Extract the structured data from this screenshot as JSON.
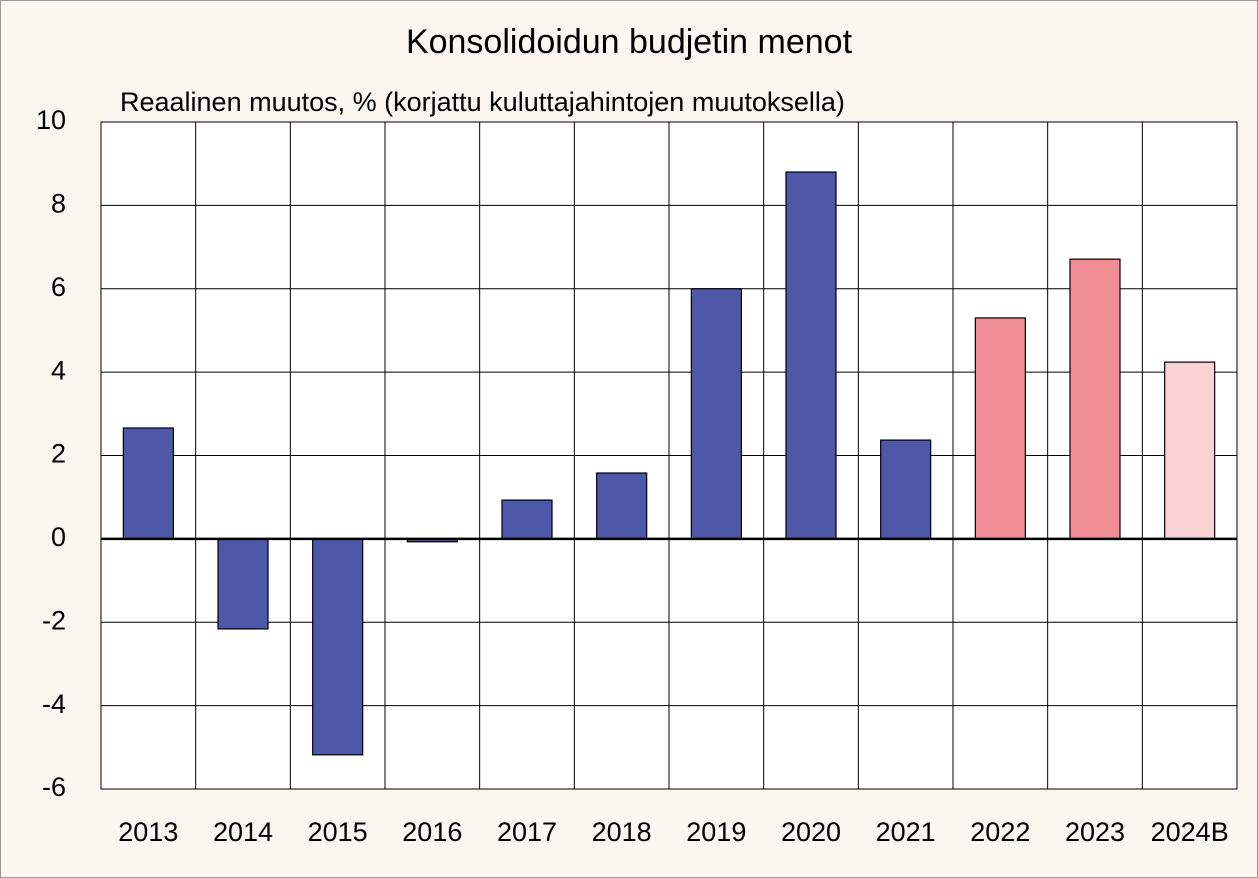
{
  "chart_data": {
    "type": "bar",
    "title": "Konsolidoidun budjetin menot",
    "subtitle": "Reaalinen muutos, % (korjattu kuluttajahintojen muutoksella)",
    "categories": [
      "2013",
      "2014",
      "2015",
      "2016",
      "2017",
      "2018",
      "2019",
      "2020",
      "2021",
      "2022",
      "2023",
      "2024B"
    ],
    "values": [
      2.66,
      -2.16,
      -5.18,
      -0.07,
      0.93,
      1.58,
      6.0,
      8.8,
      2.37,
      5.3,
      6.71,
      4.24
    ],
    "colors": [
      "#4f57a8",
      "#4f57a8",
      "#4f57a8",
      "#4f57a8",
      "#4f57a8",
      "#4f57a8",
      "#4f57a8",
      "#4f57a8",
      "#4f57a8",
      "#f08c94",
      "#f08c94",
      "#f8d2d5"
    ],
    "ylim": [
      -6,
      10
    ],
    "yticks": [
      -6,
      -4,
      -2,
      0,
      2,
      4,
      6,
      8,
      10
    ],
    "grid": true
  }
}
